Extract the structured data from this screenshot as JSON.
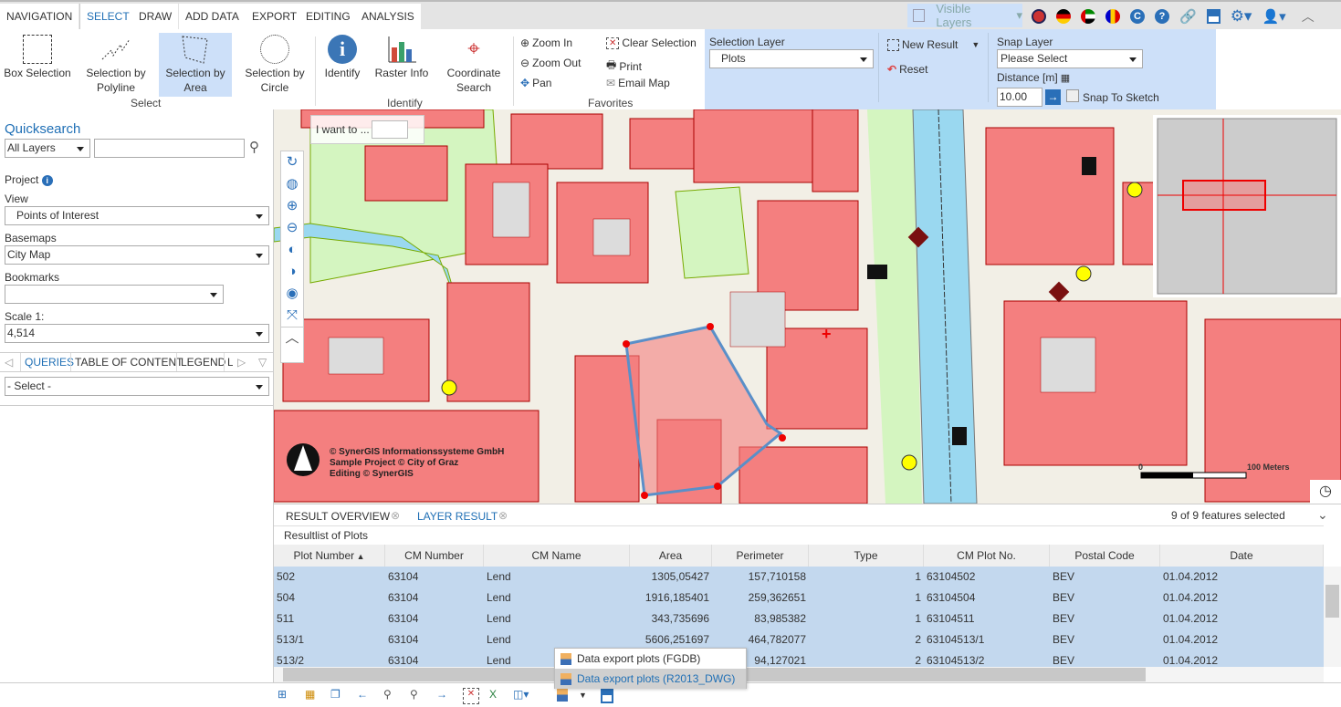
{
  "tabs": [
    {
      "label": "NAVIGATION"
    },
    {
      "label": "SELECT",
      "active": true
    },
    {
      "label": "DRAW"
    },
    {
      "label": "ADD DATA"
    },
    {
      "label": "EXPORT"
    },
    {
      "label": "EDITING"
    },
    {
      "label": "ANALYSIS"
    }
  ],
  "topbar": {
    "visible_layers": "Visible Layers",
    "icons": [
      "flag-uk-icon",
      "flag-de-icon",
      "flag-ae-icon",
      "flag-ro-icon",
      "copyright-icon",
      "help-icon",
      "link-icon",
      "save-icon",
      "gear-icon",
      "user-icon",
      "collapse-icon"
    ]
  },
  "ribbon": {
    "select": {
      "box": "Box Selection",
      "polyline": "Selection by Polyline",
      "area": "Selection by Area",
      "circle": "Selection by Circle",
      "group": "Select"
    },
    "identify": {
      "identify": "Identify",
      "raster": "Raster Info",
      "coord": "Coordinate Search",
      "group": "Identify"
    },
    "favorites": {
      "zoom_in": "Zoom In",
      "zoom_out": "Zoom Out",
      "pan": "Pan",
      "clear": "Clear Selection",
      "print": "Print",
      "email": "Email Map",
      "group": "Favorites"
    },
    "selection": {
      "layer_label": "Selection Layer",
      "layer_value": "Plots",
      "new_result": "New Result",
      "reset": "Reset",
      "snap_label": "Snap Layer",
      "snap_value": "Please Select",
      "distance_label": "Distance [m]",
      "distance_value": "10.00",
      "snap_to_sketch": "Snap To Sketch"
    }
  },
  "left": {
    "quicksearch": "Quicksearch",
    "layers_value": "All Layers",
    "search_value": "",
    "project": "Project",
    "view_label": "View",
    "view_value": "Points of Interest",
    "basemaps_label": "Basemaps",
    "basemaps_value": "City Map",
    "bookmarks_label": "Bookmarks",
    "bookmarks_value": "",
    "scale_label": "Scale 1:",
    "scale_value": "4,514",
    "tabs": [
      "QUERIES",
      "TABLE OF CONTENT",
      "LEGEND",
      "L"
    ],
    "query_value": "- Select -"
  },
  "map": {
    "i_want_to": "I want to ...",
    "copyright": [
      "© SynerGIS Informationssysteme GmbH",
      "Sample Project © City of Graz",
      "Editing © SynerGIS"
    ],
    "scale_min": "0",
    "scale_max": "100 Meters"
  },
  "results": {
    "tabs": [
      "RESULT OVERVIEW",
      "LAYER RESULT"
    ],
    "count": "9 of 9 features selected",
    "title": "Resultlist of Plots",
    "columns": [
      "Plot Number",
      "CM Number",
      "CM Name",
      "Area",
      "Perimeter",
      "Type",
      "CM Plot No.",
      "Postal Code",
      "Date"
    ],
    "rows": [
      [
        "502",
        "63104",
        "Lend",
        "1305,05427",
        "157,710158",
        "1",
        "63104502",
        "BEV",
        "01.04.2012"
      ],
      [
        "504",
        "63104",
        "Lend",
        "1916,185401",
        "259,362651",
        "1",
        "63104504",
        "BEV",
        "01.04.2012"
      ],
      [
        "511",
        "63104",
        "Lend",
        "343,735696",
        "83,985382",
        "1",
        "63104511",
        "BEV",
        "01.04.2012"
      ],
      [
        "513/1",
        "63104",
        "Lend",
        "5606,251697",
        "464,782077",
        "2",
        "63104513/1",
        "BEV",
        "01.04.2012"
      ],
      [
        "513/2",
        "63104",
        "Lend",
        "",
        "94,127021",
        "2",
        "63104513/2",
        "BEV",
        "01.04.2012"
      ]
    ],
    "export_menu": [
      "Data export plots (FGDB)",
      "Data export plots (R2013_DWG)"
    ]
  },
  "colors": {
    "accent": "#1f6fb5",
    "selection_panel": "#cde0f9",
    "row_selected": "#c3d8ee",
    "building": "#f47f7f",
    "water": "#9ad8f0",
    "park": "#d4f5c0"
  }
}
